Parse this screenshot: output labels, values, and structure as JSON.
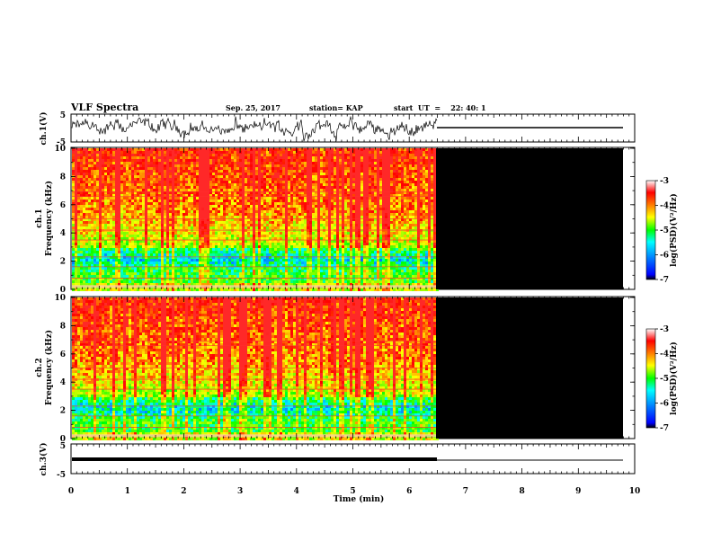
{
  "header": {
    "title": "VLF Spectra",
    "date": "Sep. 25, 2017",
    "station": "station= KAP",
    "start": "start  UT  =    22: 40: 1"
  },
  "chart_data": [
    {
      "type": "line",
      "name": "ch1-waveform",
      "ylabel": "ch.1(V)",
      "ylim": [
        -5,
        5
      ],
      "yticks": [
        "5",
        "-5"
      ],
      "x_data_end_min": 6.5,
      "flat_level_after_end": 0
    },
    {
      "type": "heatmap",
      "name": "ch1-spectrogram",
      "ylabel": "ch.1\nFrequency (kHz)",
      "ylim": [
        0,
        10
      ],
      "yticks": [
        "0",
        "2",
        "4",
        "6",
        "8",
        "10"
      ],
      "x_data_end_min": 6.5,
      "colorbar": {
        "label": "log(PSD)(V²/Hz)",
        "range": [
          -7,
          -3
        ],
        "ticks": [
          "-3",
          "-4",
          "-5",
          "-6",
          "-7"
        ]
      }
    },
    {
      "type": "heatmap",
      "name": "ch2-spectrogram",
      "ylabel": "ch.2\nFrequency (kHz)",
      "ylim": [
        0,
        10
      ],
      "yticks": [
        "0",
        "2",
        "4",
        "6",
        "8",
        "10"
      ],
      "x_data_end_min": 6.5,
      "colorbar": {
        "label": "log(PSD)(V²/Hz)",
        "range": [
          -7,
          -3
        ],
        "ticks": [
          "-3",
          "-4",
          "-5",
          "-6",
          "-7"
        ]
      }
    },
    {
      "type": "line",
      "name": "ch3-waveform",
      "ylabel": "ch.3(V)",
      "ylim": [
        -5,
        5
      ],
      "yticks": [
        "5",
        "-5"
      ],
      "x_data_end_min": 6.5
    }
  ],
  "xaxis": {
    "label": "Time (min)",
    "xlim": [
      0,
      10
    ],
    "ticks": [
      "0",
      "1",
      "2",
      "3",
      "4",
      "5",
      "6",
      "7",
      "8",
      "9",
      "10"
    ]
  }
}
